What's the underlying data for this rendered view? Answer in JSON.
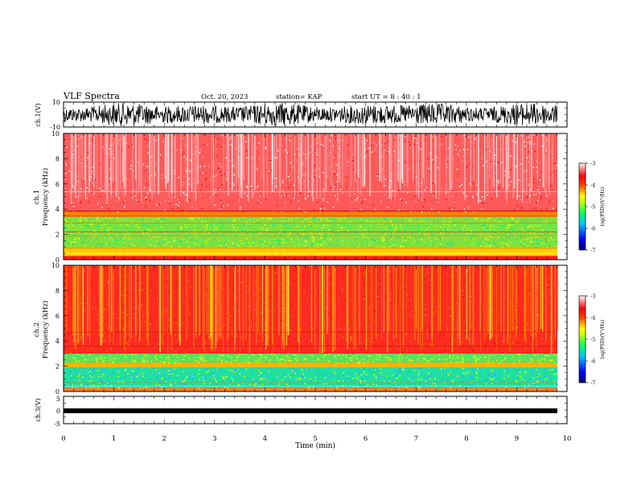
{
  "header": {
    "title": "VLF Spectra",
    "date": "Oct. 20, 2023",
    "station": "station= KAP",
    "start": "start UT =  8 : 40 : 1"
  },
  "chart_data": [
    {
      "type": "line",
      "ylabel": "ch.1(V)",
      "ylim": [
        -10,
        10
      ],
      "yticks": [
        "10",
        "-10"
      ],
      "xlim": [
        0,
        10
      ],
      "series": [
        {
          "color": "#000000",
          "description_noise": true
        }
      ]
    },
    {
      "type": "heatmap",
      "ylabel_top": "ch.1",
      "ylabel": "Frequency (kHz)",
      "ylim": [
        0,
        10
      ],
      "yticks": [
        "0",
        "2",
        "4",
        "6",
        "8",
        "10"
      ],
      "xlim": [
        0,
        10
      ],
      "colorbar": {
        "label": "log(PSD)(V²/Hz)",
        "ticks": [
          "-3",
          "-4",
          "-5",
          "-6",
          "-7"
        ],
        "range": [
          -7,
          -3
        ]
      }
    },
    {
      "type": "heatmap",
      "ylabel_top": "ch.2",
      "ylabel": "Frequency (kHz)",
      "ylim": [
        0,
        10
      ],
      "yticks": [
        "0",
        "2",
        "4",
        "6",
        "8",
        "10"
      ],
      "xlim": [
        0,
        10
      ],
      "colorbar": {
        "label": "log(PSD)(V²/Hz)",
        "ticks": [
          "-3",
          "-4",
          "-5",
          "-6",
          "-7"
        ],
        "range": [
          -7,
          -3
        ]
      }
    },
    {
      "type": "line",
      "ylabel": "ch.3(V)",
      "ylim": [
        -5,
        5
      ],
      "yticks": [
        "5",
        "0",
        "-5"
      ],
      "xlim": [
        0,
        10
      ],
      "series": [
        {
          "color": "#000000"
        }
      ]
    }
  ],
  "xaxis": {
    "label": "Time (min)",
    "ticks": [
      "0",
      "1",
      "2",
      "3",
      "4",
      "5",
      "6",
      "7",
      "8",
      "9",
      "10"
    ]
  }
}
